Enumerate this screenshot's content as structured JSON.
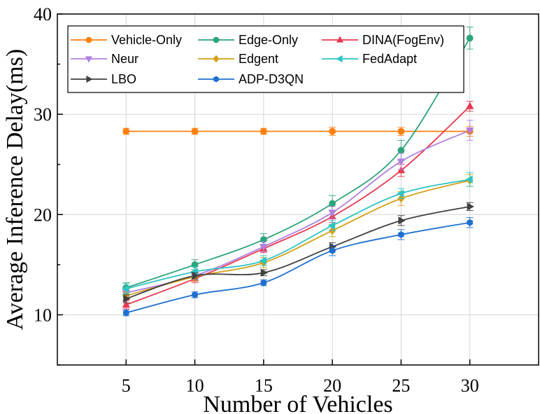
{
  "chart_data": {
    "type": "line",
    "xlabel": "Number of Vehicles",
    "ylabel": "Average Inference Delay(ms)",
    "x": [
      5,
      10,
      15,
      20,
      25,
      30
    ],
    "xlim": [
      0,
      35
    ],
    "ylim": [
      5,
      40
    ],
    "xticks": [
      5,
      10,
      15,
      20,
      25,
      30
    ],
    "yticks": [
      10,
      20,
      30,
      40
    ],
    "grid": true,
    "legend_position": "top",
    "series": [
      {
        "name": "Vehicle-Only",
        "color": "#FF7F0E",
        "marker": "circle",
        "values": [
          28.3,
          28.3,
          28.3,
          28.3,
          28.3,
          28.3
        ],
        "errors": [
          0.3,
          0.3,
          0.3,
          0.4,
          0.4,
          0.5
        ]
      },
      {
        "name": "Edge-Only",
        "color": "#2CA57A",
        "marker": "circle",
        "values": [
          12.7,
          15.0,
          17.5,
          21.1,
          26.4,
          37.6
        ],
        "errors": [
          0.5,
          0.5,
          0.6,
          0.8,
          1.0,
          1.1
        ]
      },
      {
        "name": "DINA(FogEnv)",
        "color": "#E8384F",
        "marker": "triangle",
        "values": [
          11.0,
          13.6,
          16.6,
          19.8,
          24.4,
          30.8
        ],
        "errors": [
          0.4,
          0.4,
          0.4,
          0.6,
          0.6,
          0.5
        ]
      },
      {
        "name": "Neur",
        "color": "#B07FE0",
        "marker": "tri-down",
        "values": [
          12.2,
          13.9,
          16.8,
          20.2,
          25.3,
          28.4
        ],
        "errors": [
          0.4,
          0.4,
          0.5,
          0.6,
          0.8,
          1.0
        ]
      },
      {
        "name": "Edgent",
        "color": "#D4A017",
        "marker": "diamond",
        "values": [
          11.9,
          13.8,
          15.2,
          18.4,
          21.6,
          23.4
        ],
        "errors": [
          0.4,
          0.4,
          0.5,
          0.6,
          0.7,
          0.6
        ]
      },
      {
        "name": "FedAdapt",
        "color": "#2CC4C4",
        "marker": "tri-left",
        "values": [
          12.6,
          14.3,
          15.4,
          18.9,
          22.1,
          23.5
        ],
        "errors": [
          0.5,
          0.5,
          0.5,
          0.5,
          0.5,
          0.7
        ]
      },
      {
        "name": "LBO",
        "color": "#404040",
        "marker": "tri-right",
        "values": [
          11.6,
          13.9,
          14.2,
          16.8,
          19.4,
          20.8
        ],
        "errors": [
          0.4,
          0.3,
          0.3,
          0.4,
          0.5,
          0.4
        ]
      },
      {
        "name": "ADP-D3QN",
        "color": "#1F6FD0",
        "marker": "hexagon",
        "values": [
          10.2,
          12.0,
          13.2,
          16.4,
          18.0,
          19.2
        ],
        "errors": [
          0.3,
          0.3,
          0.3,
          0.5,
          0.5,
          0.5
        ]
      }
    ]
  }
}
